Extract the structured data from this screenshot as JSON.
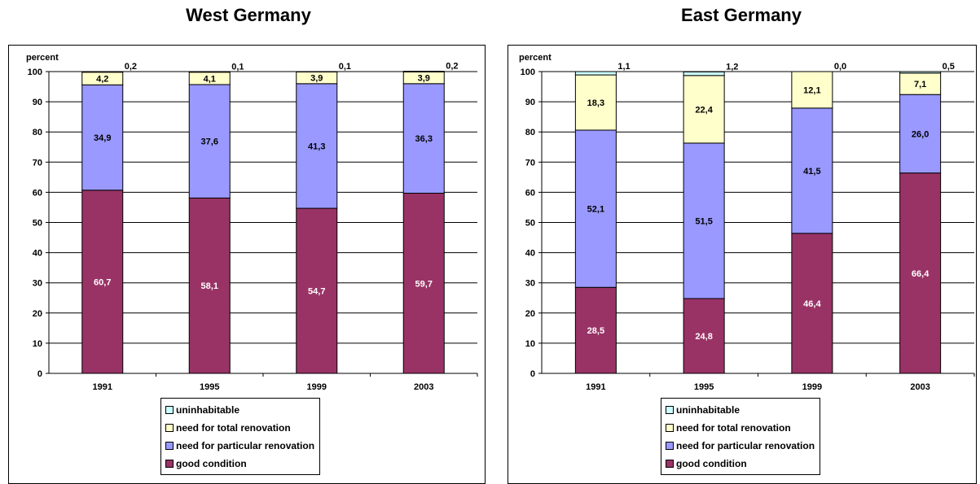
{
  "chart_data": [
    {
      "type": "stacked-bar",
      "title": "West Germany",
      "ylabel": "percent",
      "ylim": [
        0,
        100
      ],
      "yticks": [
        0,
        10,
        20,
        30,
        40,
        50,
        60,
        70,
        80,
        90,
        100
      ],
      "grid": true,
      "legend_position": "bottom",
      "categories": [
        "1991",
        "1995",
        "1999",
        "2003"
      ],
      "series": [
        {
          "name": "good condition",
          "color": "#993366",
          "label_color": "#ffffff",
          "values": [
            60.7,
            58.1,
            54.7,
            59.7
          ],
          "labels": [
            "60,7",
            "58,1",
            "54,7",
            "59,7"
          ]
        },
        {
          "name": "need for particular renovation",
          "color": "#9999ff",
          "label_color": "#000000",
          "values": [
            34.9,
            37.6,
            41.3,
            36.3
          ],
          "labels": [
            "34,9",
            "37,6",
            "41,3",
            "36,3"
          ]
        },
        {
          "name": "need for total renovation",
          "color": "#ffffcc",
          "label_color": "#000000",
          "values": [
            4.2,
            4.1,
            3.9,
            3.9
          ],
          "labels": [
            "4,2",
            "4,1",
            "3,9",
            "3,9"
          ]
        },
        {
          "name": "uninhabitable",
          "color": "#ccffff",
          "label_color": "#000000",
          "values": [
            0.2,
            0.1,
            0.1,
            0.2
          ],
          "labels": [
            "0,2",
            "0,1",
            "0,1",
            "0,2"
          ]
        }
      ]
    },
    {
      "type": "stacked-bar",
      "title": "East Germany",
      "ylabel": "percent",
      "ylim": [
        0,
        100
      ],
      "yticks": [
        0,
        10,
        20,
        30,
        40,
        50,
        60,
        70,
        80,
        90,
        100
      ],
      "grid": true,
      "legend_position": "bottom",
      "categories": [
        "1991",
        "1995",
        "1999",
        "2003"
      ],
      "series": [
        {
          "name": "good condition",
          "color": "#993366",
          "label_color": "#ffffff",
          "values": [
            28.5,
            24.8,
            46.4,
            66.4
          ],
          "labels": [
            "28,5",
            "24,8",
            "46,4",
            "66,4"
          ]
        },
        {
          "name": "need for particular renovation",
          "color": "#9999ff",
          "label_color": "#000000",
          "values": [
            52.1,
            51.5,
            41.5,
            26.0
          ],
          "labels": [
            "52,1",
            "51,5",
            "41,5",
            "26,0"
          ]
        },
        {
          "name": "need for total renovation",
          "color": "#ffffcc",
          "label_color": "#000000",
          "values": [
            18.3,
            22.4,
            12.1,
            7.1
          ],
          "labels": [
            "18,3",
            "22,4",
            "12,1",
            "7,1"
          ]
        },
        {
          "name": "uninhabitable",
          "color": "#ccffff",
          "label_color": "#000000",
          "values": [
            1.1,
            1.2,
            0.0,
            0.5
          ],
          "labels": [
            "1,1",
            "1,2",
            "0,0",
            "0,5"
          ]
        }
      ]
    }
  ]
}
